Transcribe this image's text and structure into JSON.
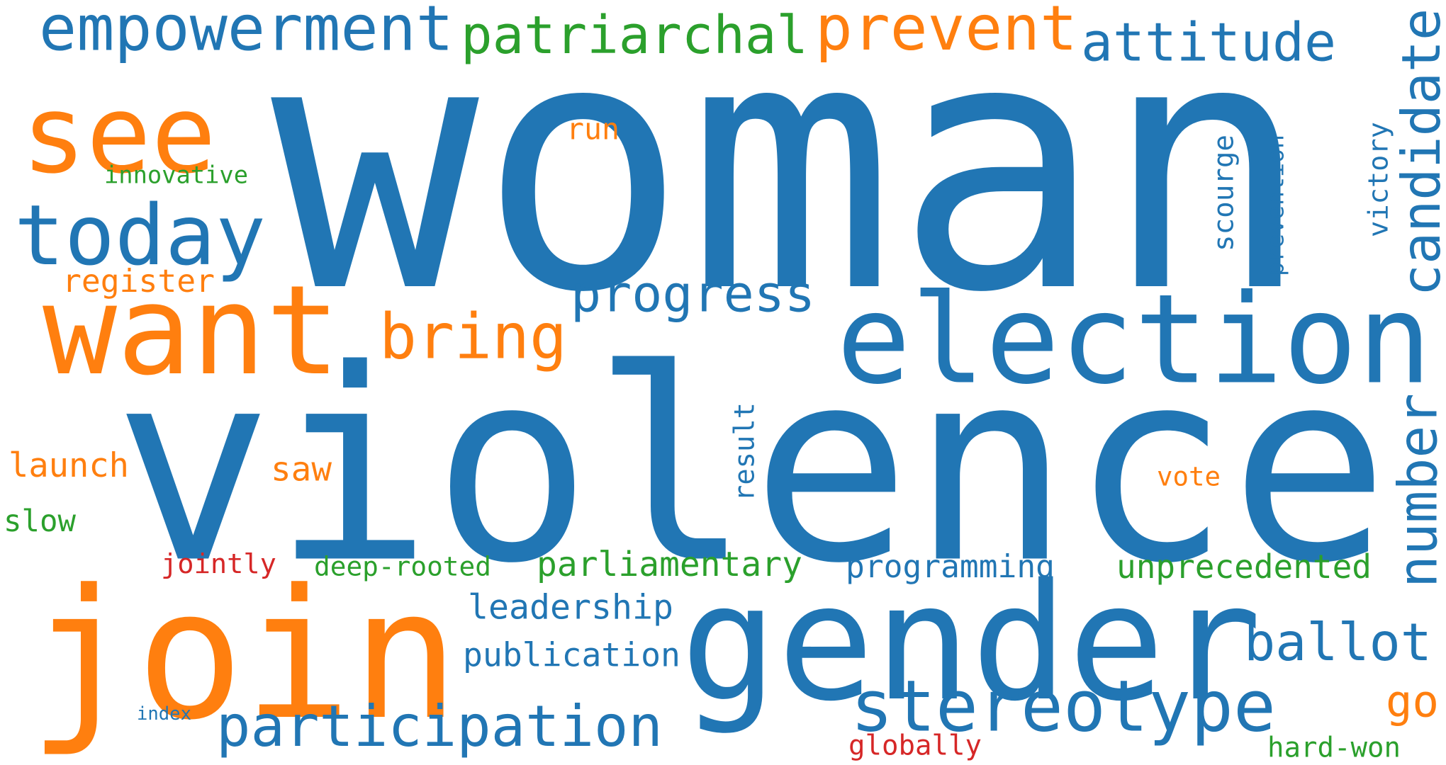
{
  "colors": {
    "background": "#ffffff",
    "blue": "#2176b4",
    "orange": "#ff7f0f",
    "green": "#2ba02c",
    "red": "#d62727"
  },
  "words": [
    {
      "id": "woman",
      "text": "woman",
      "color": "blue",
      "vertical": false
    },
    {
      "id": "violence",
      "text": "violence",
      "color": "blue",
      "vertical": false
    },
    {
      "id": "join",
      "text": "join",
      "color": "orange",
      "vertical": false
    },
    {
      "id": "gender",
      "text": "gender",
      "color": "blue",
      "vertical": false
    },
    {
      "id": "election",
      "text": "election",
      "color": "blue",
      "vertical": false
    },
    {
      "id": "want",
      "text": "want",
      "color": "orange",
      "vertical": false
    },
    {
      "id": "see",
      "text": "see",
      "color": "orange",
      "vertical": false
    },
    {
      "id": "today",
      "text": "today",
      "color": "blue",
      "vertical": false
    },
    {
      "id": "empowerment",
      "text": "empowerment",
      "color": "blue",
      "vertical": false
    },
    {
      "id": "patriarchal",
      "text": "patriarchal",
      "color": "green",
      "vertical": false
    },
    {
      "id": "prevent",
      "text": "prevent",
      "color": "orange",
      "vertical": false
    },
    {
      "id": "attitude",
      "text": "attitude",
      "color": "blue",
      "vertical": false
    },
    {
      "id": "candidate",
      "text": "candidate",
      "color": "blue",
      "vertical": true
    },
    {
      "id": "stereotype",
      "text": "stereotype",
      "color": "blue",
      "vertical": false
    },
    {
      "id": "participation",
      "text": "participation",
      "color": "blue",
      "vertical": false
    },
    {
      "id": "number",
      "text": "number",
      "color": "blue",
      "vertical": true
    },
    {
      "id": "progress",
      "text": "progress",
      "color": "blue",
      "vertical": false
    },
    {
      "id": "bring",
      "text": "bring",
      "color": "orange",
      "vertical": false
    },
    {
      "id": "ballot",
      "text": "ballot",
      "color": "blue",
      "vertical": false
    },
    {
      "id": "go",
      "text": "go",
      "color": "orange",
      "vertical": false
    },
    {
      "id": "launch",
      "text": "launch",
      "color": "orange",
      "vertical": false
    },
    {
      "id": "parliamentary",
      "text": "parliamentary",
      "color": "green",
      "vertical": false
    },
    {
      "id": "unprecedented",
      "text": "unprecedented",
      "color": "green",
      "vertical": false
    },
    {
      "id": "programming",
      "text": "programming",
      "color": "blue",
      "vertical": false
    },
    {
      "id": "leadership",
      "text": "leadership",
      "color": "blue",
      "vertical": false
    },
    {
      "id": "publication",
      "text": "publication",
      "color": "blue",
      "vertical": false
    },
    {
      "id": "register",
      "text": "register",
      "color": "orange",
      "vertical": false
    },
    {
      "id": "saw",
      "text": "saw",
      "color": "orange",
      "vertical": false
    },
    {
      "id": "slow",
      "text": "slow",
      "color": "green",
      "vertical": false
    },
    {
      "id": "run",
      "text": "run",
      "color": "orange",
      "vertical": false
    },
    {
      "id": "innovative",
      "text": "innovative",
      "color": "green",
      "vertical": false
    },
    {
      "id": "scourge",
      "text": "scourge",
      "color": "blue",
      "vertical": true
    },
    {
      "id": "prevention",
      "text": "prevention",
      "color": "blue",
      "vertical": true
    },
    {
      "id": "victory",
      "text": "victory",
      "color": "blue",
      "vertical": true
    },
    {
      "id": "result",
      "text": "result",
      "color": "blue",
      "vertical": true
    },
    {
      "id": "vote",
      "text": "vote",
      "color": "orange",
      "vertical": false
    },
    {
      "id": "jointly",
      "text": "jointly",
      "color": "red",
      "vertical": false
    },
    {
      "id": "deep-rooted",
      "text": "deep-rooted",
      "color": "green",
      "vertical": false
    },
    {
      "id": "globally",
      "text": "globally",
      "color": "red",
      "vertical": false
    },
    {
      "id": "hard-won",
      "text": "hard-won",
      "color": "green",
      "vertical": false
    },
    {
      "id": "index",
      "text": "index",
      "color": "blue",
      "vertical": false
    }
  ]
}
